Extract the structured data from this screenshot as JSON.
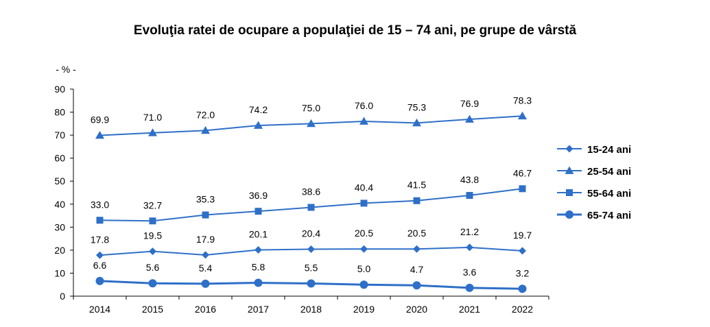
{
  "chart_data": {
    "type": "line",
    "title": "Evoluţia ratei de ocupare a populaţiei de 15 – 74 ani, pe grupe de vârstă",
    "ylabel": "- % -",
    "xlabel": "",
    "ylim": [
      0,
      90
    ],
    "yticks": [
      "0",
      "10",
      "20",
      "30",
      "40",
      "50",
      "60",
      "70",
      "80",
      "90"
    ],
    "categories": [
      "2014",
      "2015",
      "2016",
      "2017",
      "2018",
      "2019",
      "2020",
      "2021",
      "2022"
    ],
    "legend_position": "right",
    "grid": false,
    "series": [
      {
        "name": "15-24 ani",
        "marker": "diamond",
        "color": "#2E6FC8",
        "values": [
          17.8,
          19.5,
          17.9,
          20.1,
          20.4,
          20.5,
          20.5,
          21.2,
          19.7
        ],
        "labels": [
          "17.8",
          "19.5",
          "17.9",
          "20.1",
          "20.4",
          "20.5",
          "20.5",
          "21.2",
          "19.7"
        ]
      },
      {
        "name": "25-54 ani",
        "marker": "triangle",
        "color": "#2E6FC8",
        "values": [
          69.9,
          71.0,
          72.0,
          74.2,
          75.0,
          76.0,
          75.3,
          76.9,
          78.3
        ],
        "labels": [
          "69.9",
          "71.0",
          "72.0",
          "74.2",
          "75.0",
          "76.0",
          "75.3",
          "76.9",
          "78.3"
        ]
      },
      {
        "name": "55-64 ani",
        "marker": "square",
        "color": "#2E6FC8",
        "values": [
          33.0,
          32.7,
          35.3,
          36.9,
          38.6,
          40.4,
          41.5,
          43.8,
          46.7
        ],
        "labels": [
          "33.0",
          "32.7",
          "35.3",
          "36.9",
          "38.6",
          "40.4",
          "41.5",
          "43.8",
          "46.7"
        ]
      },
      {
        "name": "65-74 ani",
        "marker": "circle",
        "color": "#2E6FC8",
        "values": [
          6.6,
          5.6,
          5.4,
          5.8,
          5.5,
          5.0,
          4.7,
          3.6,
          3.2
        ],
        "labels": [
          "6.6",
          "5.6",
          "5.4",
          "5.8",
          "5.5",
          "5.0",
          "4.7",
          "3.6",
          "3.2"
        ]
      }
    ]
  }
}
